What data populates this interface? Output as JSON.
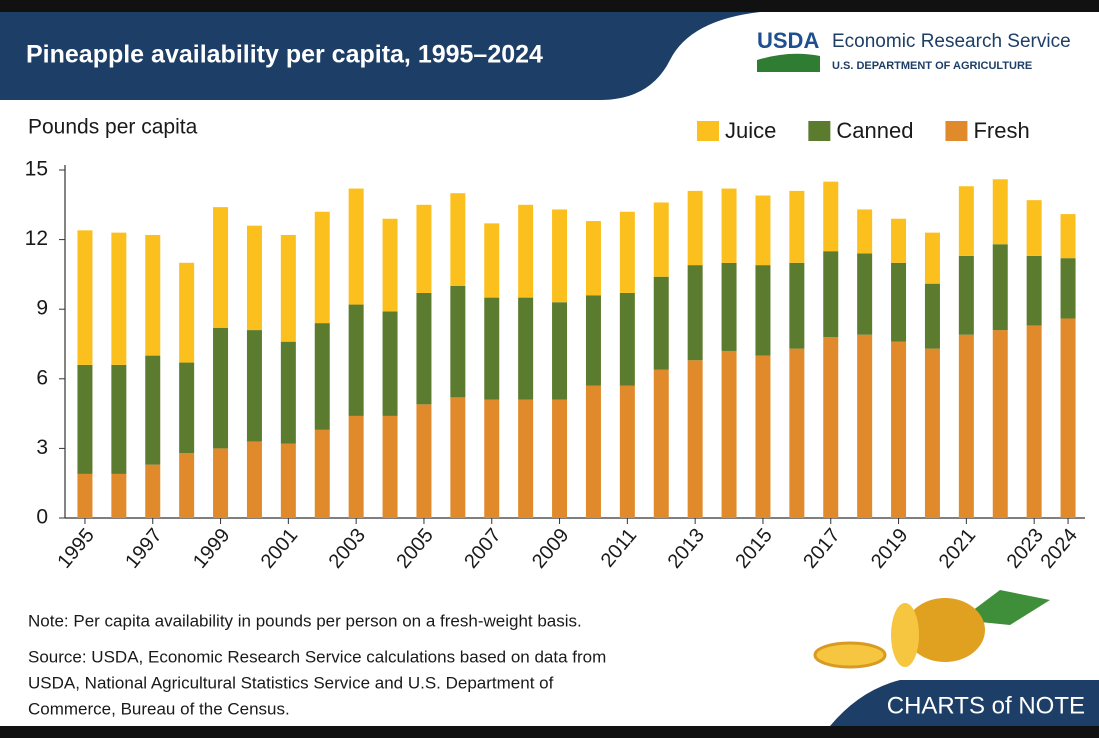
{
  "chart_data": {
    "type": "stacked-bar",
    "title": "Pineapple availability per capita, 1995–2024",
    "y_label": "Pounds per capita",
    "categories": [
      "1995",
      null,
      "1997",
      null,
      "1999",
      null,
      "2001",
      null,
      "2003",
      null,
      "2005",
      null,
      "2007",
      null,
      "2009",
      null,
      "2011",
      null,
      "2013",
      null,
      "2015",
      null,
      "2017",
      null,
      "2019",
      null,
      "2021",
      null,
      "2023",
      "2024"
    ],
    "series": [
      {
        "name": "Fresh",
        "color": "#e08a2c",
        "values": [
          1.9,
          1.9,
          2.3,
          2.8,
          3.0,
          3.3,
          3.2,
          3.8,
          4.4,
          4.4,
          4.9,
          5.2,
          5.1,
          5.1,
          5.1,
          5.7,
          5.7,
          6.4,
          6.8,
          7.2,
          7.0,
          7.3,
          7.8,
          7.9,
          7.6,
          7.3,
          7.9,
          8.1,
          8.3,
          8.6
        ]
      },
      {
        "name": "Canned",
        "color": "#5b7b2e",
        "values": [
          4.7,
          4.7,
          4.7,
          3.9,
          5.2,
          4.8,
          4.4,
          4.6,
          4.8,
          4.5,
          4.8,
          4.8,
          4.4,
          4.4,
          4.2,
          3.9,
          4.0,
          4.0,
          4.1,
          3.8,
          3.9,
          3.7,
          3.7,
          3.5,
          3.4,
          2.8,
          3.4,
          3.7,
          3.0,
          2.6
        ]
      },
      {
        "name": "Juice",
        "color": "#fcc01e",
        "values": [
          5.8,
          5.7,
          5.2,
          4.3,
          5.2,
          4.5,
          4.6,
          4.8,
          5.0,
          4.0,
          3.8,
          4.0,
          3.2,
          4.0,
          4.0,
          3.2,
          3.5,
          3.2,
          3.2,
          3.2,
          3.0,
          3.1,
          3.0,
          1.9,
          1.9,
          2.2,
          3.0,
          2.8,
          2.4,
          1.9
        ]
      }
    ],
    "ylim": [
      0,
      15
    ],
    "yticks": [
      0,
      3,
      6,
      9,
      12,
      15
    ],
    "grid": false,
    "note": "Note: Per capita availability in pounds per person on a fresh-weight basis.",
    "source": [
      "Source: USDA, Economic Research Service calculations based on data from",
      "USDA, National Agricultural Statistics Service and U.S. Department of",
      "Commerce, Bureau of the Census."
    ],
    "logo": {
      "mark": "USDA",
      "agency": "Economic Research Service",
      "department": "U.S. DEPARTMENT OF AGRICULTURE"
    },
    "branding": "CHARTS of NOTE"
  }
}
